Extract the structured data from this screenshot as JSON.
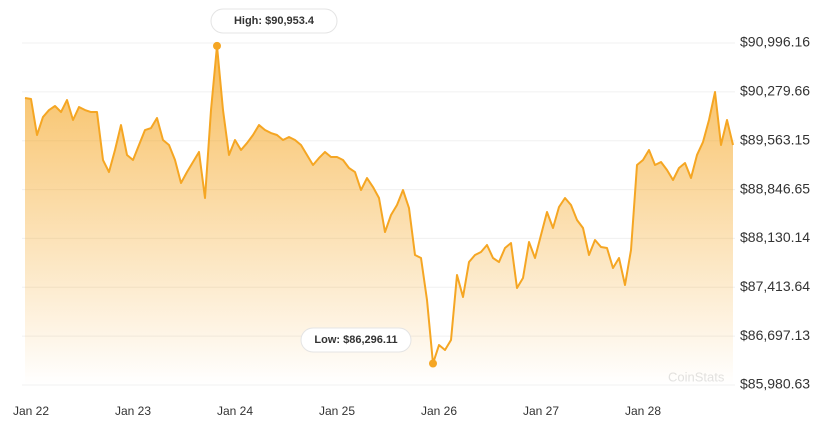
{
  "chart_data": {
    "type": "line",
    "categories": [
      null,
      "Jan 22",
      null,
      null,
      null,
      null,
      null,
      null,
      null,
      null,
      null,
      null,
      null,
      null,
      null,
      null,
      null,
      null,
      "Jan 23",
      null,
      null,
      null,
      null,
      null,
      null,
      null,
      null,
      null,
      null,
      null,
      null,
      null,
      null,
      null,
      null,
      "Jan 24",
      null,
      null,
      null,
      null,
      null,
      null,
      null,
      null,
      null,
      null,
      null,
      null,
      null,
      null,
      null,
      null,
      "Jan 25",
      null,
      null,
      null,
      null,
      null,
      null,
      null,
      null,
      null,
      null,
      null,
      null,
      null,
      null,
      null,
      null,
      "Jan 26",
      null,
      null,
      null,
      null,
      null,
      null,
      null,
      null,
      null,
      null,
      null,
      null,
      null,
      null,
      null,
      null,
      "Jan 27",
      null,
      null,
      null,
      null,
      null,
      null,
      null,
      null,
      null,
      null,
      null,
      null,
      null,
      null,
      null,
      null,
      "Jan 28",
      null,
      null,
      null,
      null,
      null,
      null,
      null,
      null,
      null,
      null,
      null,
      null,
      null,
      null,
      null
    ],
    "values": [
      90190,
      90175,
      89647,
      89911,
      90013,
      90072,
      89984,
      90160,
      89867,
      90057,
      90013,
      89984,
      89984,
      89280,
      89104,
      89427,
      89793,
      89354,
      89280,
      89500,
      89720,
      89749,
      89896,
      89573,
      89500,
      89280,
      88943,
      89104,
      89251,
      89398,
      88723,
      90013,
      90953.4,
      90013,
      89354,
      89573,
      89427,
      89529,
      89647,
      89793,
      89720,
      89676,
      89647,
      89573,
      89617,
      89573,
      89500,
      89354,
      89207,
      89310,
      89398,
      89324,
      89324,
      89280,
      89163,
      89104,
      88840,
      89016,
      88884,
      88723,
      88224,
      88474,
      88620,
      88840,
      88576,
      87887,
      87843,
      87227,
      86296.11,
      86567,
      86494,
      86640,
      87594,
      87271,
      87784,
      87887,
      87931,
      88034,
      87843,
      87784,
      87990,
      88063,
      87403,
      87550,
      88078,
      87843,
      88180,
      88518,
      88283,
      88591,
      88723,
      88620,
      88400,
      88283,
      87887,
      88107,
      88004,
      87990,
      87696,
      87843,
      87447,
      87960,
      89207,
      89280,
      89427,
      89207,
      89251,
      89134,
      88987,
      89163,
      89236,
      89016,
      89354,
      89544,
      89867,
      90277,
      89500,
      89867,
      89500
    ],
    "color": "#f5a623",
    "ylim": [
      85980.63,
      90996.16
    ],
    "yticks": [
      {
        "value": 85980.63,
        "label": "$85,980.63"
      },
      {
        "value": 86697.13,
        "label": "$86,697.13"
      },
      {
        "value": 87413.64,
        "label": "$87,413.64"
      },
      {
        "value": 88130.14,
        "label": "$88,130.14"
      },
      {
        "value": 88846.65,
        "label": "$88,846.65"
      },
      {
        "value": 89563.15,
        "label": "$89,563.15"
      },
      {
        "value": 90279.66,
        "label": "$90,279.66"
      },
      {
        "value": 90996.16,
        "label": "$90,996.16"
      }
    ],
    "grid": true,
    "annotations": [
      {
        "text": "High: $90,953.4",
        "point": 32
      },
      {
        "text": "Low: $86,296.11",
        "point": 68
      }
    ],
    "watermark": "CoinStats"
  }
}
